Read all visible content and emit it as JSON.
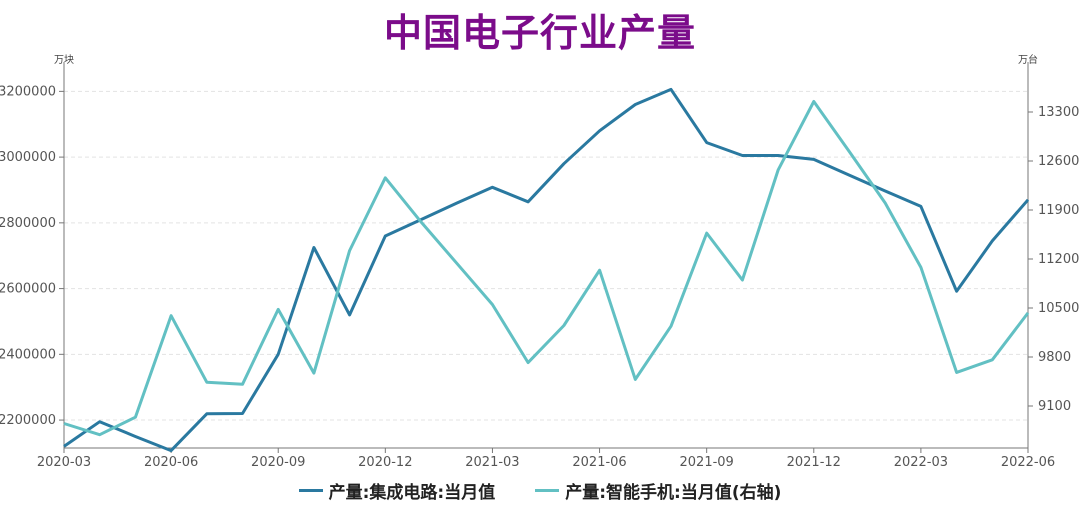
{
  "chart_data": {
    "type": "line",
    "title": "中国电子行业产量",
    "left_unit": "万块",
    "right_unit": "万台",
    "x": [
      "2020-03",
      "2020-04",
      "2020-05",
      "2020-06",
      "2020-07",
      "2020-08",
      "2020-09",
      "2020-10",
      "2020-11",
      "2020-12",
      "2021-01",
      "2021-02",
      "2021-03",
      "2021-04",
      "2021-05",
      "2021-06",
      "2021-07",
      "2021-08",
      "2021-09",
      "2021-10",
      "2021-11",
      "2021-12",
      "2022-01",
      "2022-02",
      "2022-03",
      "2022-04",
      "2022-05",
      "2022-06"
    ],
    "x_tick_labels": [
      "2020-03",
      "2020-06",
      "2020-09",
      "2020-12",
      "2021-03",
      "2021-06",
      "2021-09",
      "2021-12",
      "2022-03",
      "2022-06"
    ],
    "y_left": {
      "ticks": [
        2200000,
        2400000,
        2600000,
        2800000,
        3000000,
        3200000
      ],
      "range": [
        2115000,
        3265000
      ]
    },
    "y_right": {
      "ticks": [
        9100,
        9800,
        10500,
        11200,
        11900,
        12600,
        13300
      ],
      "range": [
        8500,
        13900
      ]
    },
    "grid": true,
    "legend_position": "bottom",
    "series": [
      {
        "name": "产量:集成电路:当月值",
        "axis": "left",
        "color": "#2a79a0",
        "values": [
          2120000,
          2195000,
          2150000,
          2107000,
          2219000,
          2220000,
          2400000,
          2725000,
          2520000,
          2760000,
          2810000,
          2860000,
          2908000,
          2864000,
          2980000,
          3080000,
          3160000,
          3206000,
          3044000,
          3005000,
          3005000,
          2993000,
          2945000,
          2897000,
          2850000,
          2592000,
          2745000,
          2870000
        ]
      },
      {
        "name": "产量:智能手机:当月值(右轴)",
        "axis": "right",
        "color": "#62c0c3",
        "values": [
          8850,
          8690,
          8940,
          10390,
          9440,
          9410,
          10480,
          9570,
          11320,
          12360,
          11730,
          11140,
          10550,
          9720,
          10250,
          11040,
          9480,
          10240,
          11570,
          10900,
          12470,
          13450,
          12730,
          12000,
          11080,
          9580,
          9760,
          10430
        ]
      }
    ]
  }
}
